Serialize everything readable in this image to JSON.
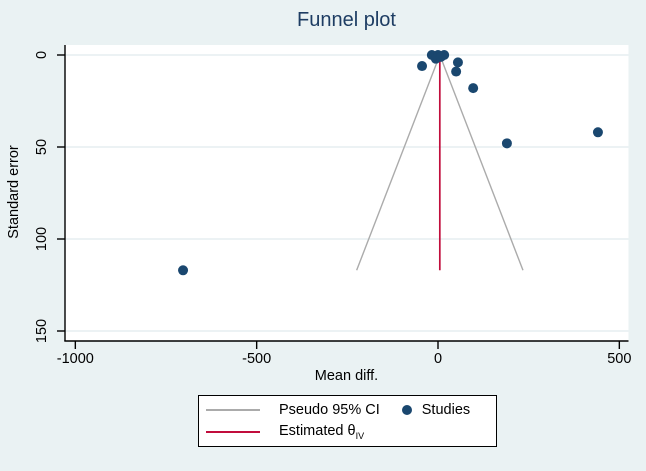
{
  "title": "Funnel plot",
  "axes": {
    "x": {
      "label": "Mean diff."
    },
    "y": {
      "label": "Standard error"
    }
  },
  "legend": {
    "pseudo_ci": "Pseudo 95% CI",
    "studies": "Studies",
    "estimated": "Estimated θ",
    "estimated_sub": "IV"
  },
  "colors": {
    "background": "#eaf2f3",
    "plot_background": "#ffffff",
    "gridline": "#e0ebee",
    "axis": "#000000",
    "title": "#1e3d63",
    "study_dot": "#1a476f",
    "funnel_line": "#ababab",
    "estimate_line": "#c10d3c"
  },
  "chart_data": {
    "type": "scatter",
    "title": "Funnel plot",
    "xlabel": "Mean diff.",
    "ylabel": "Standard error",
    "x_ticks": [
      -1000,
      -500,
      0,
      500
    ],
    "y_ticks": [
      0,
      50,
      100,
      150
    ],
    "xlim": [
      -1028,
      525
    ],
    "ylim_standard_error": [
      -5.4,
      155.4
    ],
    "grid": "horizontal-only",
    "legend_position": "bottom-center",
    "points": [
      {
        "mean_diff": -17,
        "se": 0
      },
      {
        "mean_diff": 0,
        "se": 0
      },
      {
        "mean_diff": 17,
        "se": 0
      },
      {
        "mean_diff": -6,
        "se": 2
      },
      {
        "mean_diff": 8,
        "se": 1
      },
      {
        "mean_diff": -44,
        "se": 6
      },
      {
        "mean_diff": 55,
        "se": 4
      },
      {
        "mean_diff": 50,
        "se": 9
      },
      {
        "mean_diff": 97,
        "se": 18
      },
      {
        "mean_diff": 190,
        "se": 48
      },
      {
        "mean_diff": 441,
        "se": 42
      },
      {
        "mean_diff": -703,
        "se": 117
      }
    ],
    "funnel": {
      "theta": 5,
      "se_max": 117,
      "z": 1.96
    }
  }
}
